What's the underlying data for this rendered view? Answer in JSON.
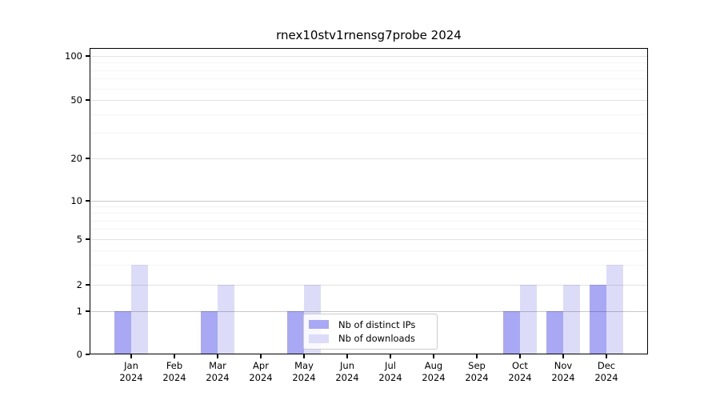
{
  "chart_data": {
    "type": "bar",
    "title": "rnex10stv1rnensg7probe 2024",
    "categories": [
      "Jan 2024",
      "Feb 2024",
      "Mar 2024",
      "Apr 2024",
      "May 2024",
      "Jun 2024",
      "Jul 2024",
      "Aug 2024",
      "Sep 2024",
      "Oct 2024",
      "Nov 2024",
      "Dec 2024"
    ],
    "x_tick_labels": [
      {
        "line1": "Jan",
        "line2": "2024"
      },
      {
        "line1": "Feb",
        "line2": "2024"
      },
      {
        "line1": "Mar",
        "line2": "2024"
      },
      {
        "line1": "Apr",
        "line2": "2024"
      },
      {
        "line1": "May",
        "line2": "2024"
      },
      {
        "line1": "Jun",
        "line2": "2024"
      },
      {
        "line1": "Jul",
        "line2": "2024"
      },
      {
        "line1": "Aug",
        "line2": "2024"
      },
      {
        "line1": "Sep",
        "line2": "2024"
      },
      {
        "line1": "Oct",
        "line2": "2024"
      },
      {
        "line1": "Nov",
        "line2": "2024"
      },
      {
        "line1": "Dec",
        "line2": "2024"
      }
    ],
    "series": [
      {
        "name": "Nb of distinct IPs",
        "color": "#a8a8f5",
        "values": [
          1,
          0,
          1,
          0,
          1,
          0,
          0,
          0,
          0,
          1,
          1,
          2
        ]
      },
      {
        "name": "Nb of downloads",
        "color": "#dcdcf9",
        "values": [
          3,
          0,
          2,
          0,
          2,
          0,
          0,
          0,
          0,
          2,
          2,
          3
        ]
      }
    ],
    "yscale": "symlog",
    "ylim": [
      0,
      113
    ],
    "y_major_ticks": [
      0,
      1,
      2,
      5,
      10,
      20,
      50,
      100
    ],
    "y_minor_ticks": [
      3,
      4,
      6,
      7,
      8,
      9,
      30,
      40,
      60,
      70,
      80,
      90
    ],
    "grid": true,
    "legend_position": "lower center inside plot",
    "xlabel": "",
    "ylabel": ""
  },
  "colors": {
    "background": "#ffffff",
    "spine": "#000000",
    "grid_major": "rgba(0,0,0,0.115)",
    "grid_bold": "rgba(0,0,0,0.21)",
    "grid_minor": "rgba(0,0,0,0.045)",
    "legend_border": "#cccccc"
  }
}
